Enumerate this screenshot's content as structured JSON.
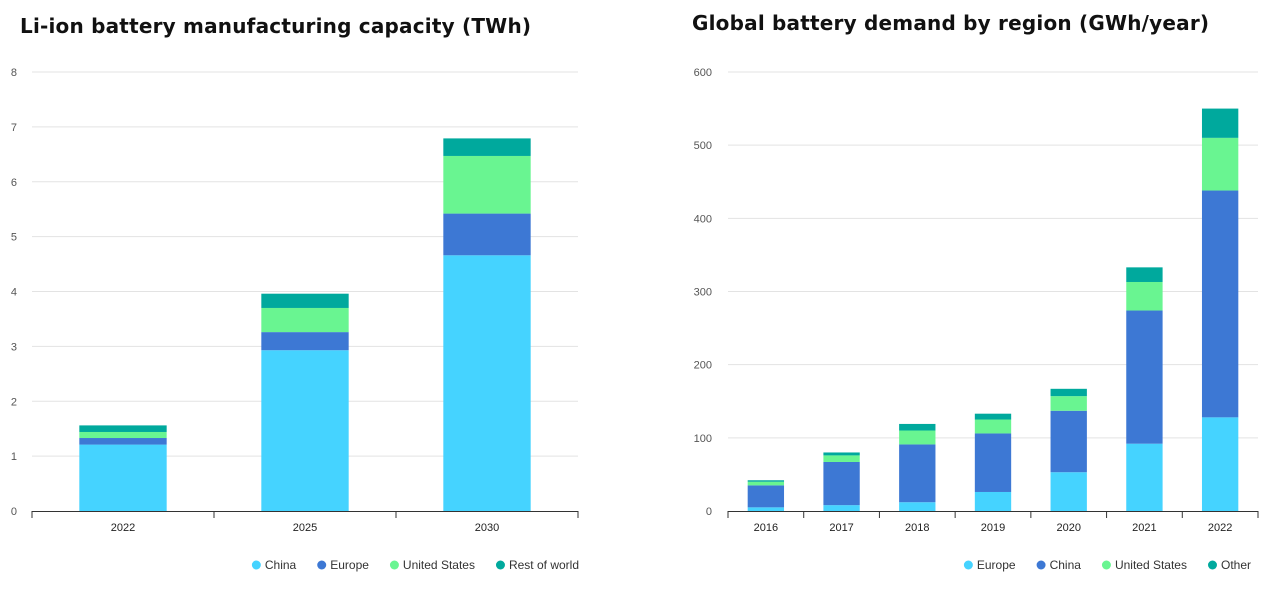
{
  "chart_data": [
    {
      "type": "bar",
      "stacked": true,
      "title": "Li-ion battery manufacturing capacity (TWh)",
      "categories": [
        "2022",
        "2025",
        "2030"
      ],
      "ylim": [
        0,
        8
      ],
      "yticks": [
        "0",
        "1",
        "2",
        "3",
        "4",
        "5",
        "6",
        "7",
        "8"
      ],
      "grid": true,
      "legend_position": "bottom-right",
      "series": [
        {
          "name": "China",
          "color": "#45d3ff",
          "values": [
            1.21,
            2.93,
            4.66
          ]
        },
        {
          "name": "Europe",
          "color": "#3d78d4",
          "values": [
            0.12,
            0.33,
            0.76
          ]
        },
        {
          "name": "United States",
          "color": "#69f591",
          "values": [
            0.11,
            0.44,
            1.05
          ]
        },
        {
          "name": "Rest of world",
          "color": "#00a99d",
          "values": [
            0.12,
            0.26,
            0.32
          ]
        }
      ]
    },
    {
      "type": "bar",
      "stacked": true,
      "title": "Global battery demand by region (GWh/year)",
      "categories": [
        "2016",
        "2017",
        "2018",
        "2019",
        "2020",
        "2021",
        "2022"
      ],
      "ylim": [
        0,
        600
      ],
      "yticks": [
        "0",
        "100",
        "200",
        "300",
        "400",
        "500",
        "600"
      ],
      "grid": true,
      "legend_position": "bottom-right",
      "series": [
        {
          "name": "Europe",
          "color": "#45d3ff",
          "values": [
            5,
            8,
            12,
            26,
            53,
            92,
            128
          ]
        },
        {
          "name": "China",
          "color": "#3d78d4",
          "values": [
            30,
            59,
            79,
            80,
            84,
            182,
            310
          ]
        },
        {
          "name": "United States",
          "color": "#69f591",
          "values": [
            5,
            9,
            19,
            19,
            20,
            39,
            72
          ]
        },
        {
          "name": "Other",
          "color": "#00a99d",
          "values": [
            2,
            4,
            9,
            8,
            10,
            20,
            40
          ]
        }
      ]
    }
  ]
}
